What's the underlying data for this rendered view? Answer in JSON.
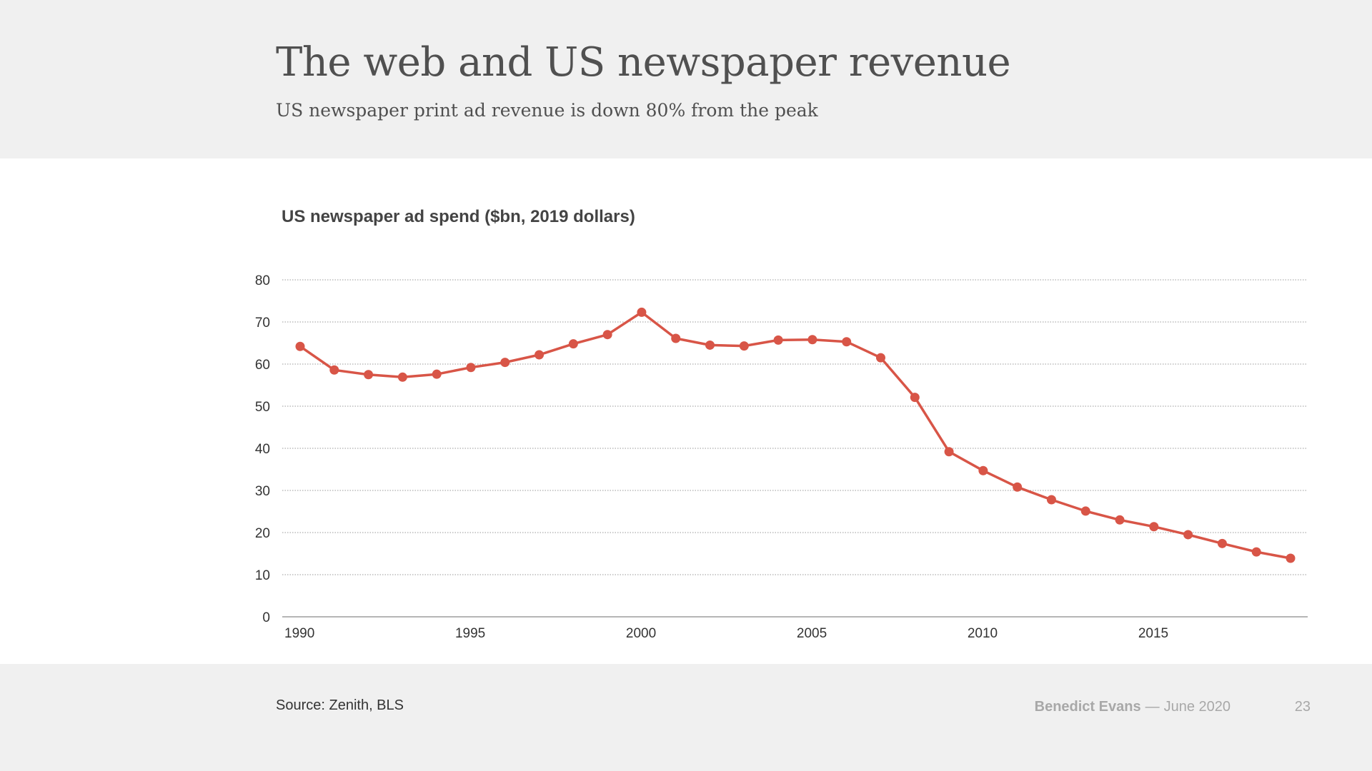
{
  "header": {
    "title": "The web and US newspaper revenue",
    "subtitle": "US newspaper print ad revenue is down 80% from the peak"
  },
  "footer": {
    "source": "Source: Zenith, BLS",
    "author": "Benedict Evans",
    "separator": "—",
    "date": "June 2020",
    "page_number": "23"
  },
  "colors": {
    "line": "#d85547",
    "background_band": "#f0f0f0",
    "plot_background": "#ffffff",
    "text": "#505050"
  },
  "chart_data": {
    "type": "line",
    "title": "US newspaper ad spend ($bn, 2019 dollars)",
    "xlabel": "",
    "ylabel": "",
    "xlim": [
      1990,
      2019
    ],
    "ylim": [
      0,
      80
    ],
    "yticks": [
      0,
      10,
      20,
      30,
      40,
      50,
      60,
      70,
      80
    ],
    "xticks": [
      1990,
      1995,
      2000,
      2005,
      2010,
      2015
    ],
    "grid": true,
    "legend": "none",
    "markers": true,
    "series": [
      {
        "x": [
          1990,
          1991,
          1992,
          1993,
          1994,
          1995,
          1996,
          1997,
          1998,
          1999,
          2000,
          2001,
          2002,
          2003,
          2004,
          2005,
          2006,
          2007,
          2008,
          2009,
          2010,
          2011,
          2012,
          2013,
          2014,
          2015,
          2016,
          2017,
          2018,
          2019
        ],
        "values": [
          64.2,
          58.6,
          57.5,
          56.9,
          57.6,
          59.2,
          60.4,
          62.2,
          64.8,
          67.0,
          72.3,
          66.1,
          64.5,
          64.3,
          65.7,
          65.8,
          65.3,
          61.5,
          52.1,
          39.2,
          34.7,
          30.8,
          27.8,
          25.1,
          23.0,
          21.4,
          19.5,
          17.4,
          15.4,
          13.9
        ]
      }
    ]
  }
}
